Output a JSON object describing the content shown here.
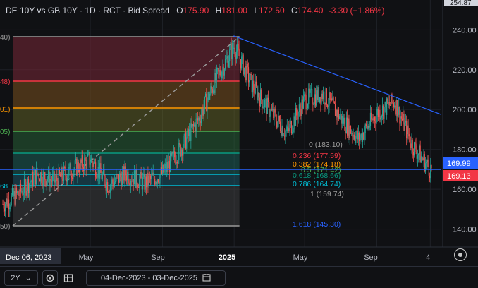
{
  "header": {
    "symbol": "DE 10Y vs GB 10Y",
    "interval": "1D",
    "source": "RCT",
    "type": "Bid Spread",
    "open_label": "O",
    "open": "175.90",
    "high_label": "H",
    "high": "181.00",
    "low_label": "L",
    "low": "172.50",
    "close_label": "C",
    "close": "174.40",
    "change": "-3.30 (−1.86%)"
  },
  "crosshair_date": "Dec 06, 2023",
  "top_price_label": "254.87",
  "price_labels": {
    "current": "169.99",
    "current_color": "#2962ff",
    "close": "169.13",
    "close_color": "#f23645"
  },
  "fib_left_labels": [
    "40)",
    "48)",
    "01)",
    "05)",
    "68",
    "50)"
  ],
  "fib_levels": [
    {
      "ratio": "0",
      "value": "183.10",
      "price": 183.1,
      "color": "#9a9a9a"
    },
    {
      "ratio": "0.236",
      "value": "177.59",
      "price": 177.59,
      "color": "#f23645"
    },
    {
      "ratio": "0.382",
      "value": "174.18",
      "price": 174.18,
      "color": "#ff9800"
    },
    {
      "ratio": "0.5",
      "value": "171.42",
      "price": 171.42,
      "color": "#4caf50"
    },
    {
      "ratio": "0.618",
      "value": "168.66",
      "price": 168.66,
      "color": "#089981"
    },
    {
      "ratio": "0.786",
      "value": "164.74",
      "price": 164.74,
      "color": "#00bcd4"
    },
    {
      "ratio": "1",
      "value": "159.74",
      "price": 159.74,
      "color": "#9a9a9a"
    },
    {
      "ratio": "1.618",
      "value": "145.30",
      "price": 145.3,
      "color": "#2962ff"
    }
  ],
  "bottom_toolbar": {
    "range": "2Y",
    "range_arrow": "⌄",
    "date_range": "04-Dec-2023 - 03-Dec-2025",
    "icons": [
      "gear-icon",
      "table-icon",
      "calendar-icon",
      "crosshair-settings-icon"
    ]
  },
  "chart_data": {
    "type": "candlestick",
    "title": "DE 10Y vs GB 10Y · 1D · RCT · Bid Spread",
    "x_ticks": [
      "May",
      "Sep",
      "2025",
      "May",
      "Sep",
      "4"
    ],
    "y_ticks": [
      140,
      160,
      180,
      200,
      220,
      240
    ],
    "ylim": [
      131,
      255
    ],
    "x_range": [
      "2023-12-04",
      "2025-12-03"
    ],
    "grid": true,
    "ohlc_last": {
      "open": 175.9,
      "high": 181.0,
      "low": 172.5,
      "close": 174.4
    },
    "series_shape_dates": [
      "2023-12",
      "2024-01",
      "2024-02",
      "2024-03",
      "2024-04",
      "2024-05",
      "2024-06",
      "2024-07",
      "2024-08",
      "2024-09",
      "2024-10",
      "2024-11",
      "2024-12",
      "2025-01",
      "2025-02",
      "2025-03",
      "2025-04",
      "2025-05",
      "2025-06",
      "2025-07",
      "2025-08",
      "2025-09",
      "2025-10",
      "2025-11",
      "2025-12"
    ],
    "series_shape_values": [
      152,
      158,
      168,
      164,
      170,
      175,
      162,
      168,
      163,
      168,
      180,
      195,
      215,
      232,
      212,
      200,
      188,
      205,
      208,
      196,
      185,
      198,
      204,
      182,
      170
    ],
    "fib_retracement_drawn": {
      "levels": [
        0,
        0.236,
        0.382,
        0.5,
        0.618,
        0.786,
        1,
        1.618
      ],
      "left_anchor_price": 145,
      "right_anchor_price": 237
    },
    "trendline": {
      "from": {
        "date": "2025-01-06",
        "price": 237
      },
      "to": {
        "date": "2025-12-03",
        "price": 199
      }
    },
    "horizontal_line": {
      "price": 169.9
    }
  }
}
